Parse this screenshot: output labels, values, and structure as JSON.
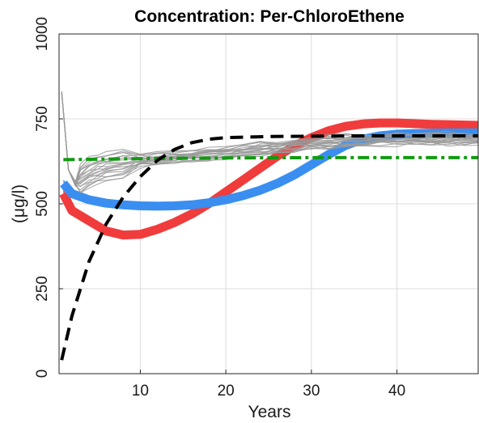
{
  "chart_data": {
    "type": "line",
    "title": "Concentration: Per-ChloroEthene",
    "xlabel": "Years",
    "ylabel": "(μg/l)",
    "xlim": [
      0.5,
      49.5
    ],
    "ylim": [
      0,
      1000
    ],
    "xticks": [
      10,
      20,
      30,
      40
    ],
    "yticks": [
      0,
      250,
      500,
      750,
      1000
    ],
    "grid": true,
    "legend": "none",
    "colors": {
      "red": "#f03c3c",
      "blue": "#3a8ef0",
      "gray": "#9a9a9a",
      "green": "#109a10",
      "black": "#000000"
    },
    "series": [
      {
        "color": "red",
        "style": "solid-band",
        "x": [
          1,
          2,
          4,
          6,
          8,
          10,
          12,
          14,
          16,
          18,
          20,
          22,
          24,
          26,
          28,
          30,
          32,
          34,
          36,
          38,
          40,
          42,
          44,
          46,
          48,
          49.5
        ],
        "values": [
          530,
          480,
          450,
          420,
          408,
          410,
          425,
          445,
          470,
          500,
          535,
          570,
          605,
          640,
          670,
          695,
          715,
          728,
          735,
          738,
          738,
          736,
          734,
          733,
          732,
          731
        ]
      },
      {
        "color": "blue",
        "style": "solid-band",
        "x": [
          1,
          2,
          4,
          6,
          8,
          10,
          12,
          14,
          16,
          18,
          20,
          22,
          24,
          26,
          28,
          30,
          32,
          34,
          36,
          38,
          40,
          42,
          44,
          46,
          48,
          49.5
        ],
        "values": [
          560,
          530,
          512,
          502,
          497,
          494,
          493,
          494,
          497,
          503,
          512,
          524,
          540,
          560,
          585,
          615,
          645,
          672,
          690,
          700,
          705,
          707,
          708,
          709,
          709,
          709
        ]
      },
      {
        "color": "gray",
        "style": "ensemble",
        "x": [
          0.8,
          1.6,
          2.4,
          3,
          4,
          5,
          6,
          8,
          10,
          12,
          14,
          16,
          18,
          20,
          22,
          24,
          26,
          28,
          30,
          32,
          34,
          36,
          38,
          40,
          42,
          44,
          46,
          48,
          49.5
        ],
        "values": [
          830,
          600,
          560,
          575,
          595,
          605,
          612,
          620,
          627,
          633,
          638,
          642,
          646,
          650,
          656,
          662,
          668,
          673,
          678,
          682,
          685,
          688,
          690,
          691,
          692,
          692,
          692,
          692,
          692
        ]
      },
      {
        "color": "green",
        "style": "dash-dot",
        "x": [
          1,
          10,
          20,
          30,
          40,
          49.5
        ],
        "values": [
          630,
          633,
          635,
          636,
          636,
          636
        ]
      },
      {
        "color": "black",
        "style": "dashed",
        "x": [
          0.8,
          2,
          4,
          6,
          8,
          10,
          12,
          14,
          16,
          18,
          20,
          25,
          30,
          35,
          40,
          45,
          49.5
        ],
        "values": [
          40,
          170,
          330,
          440,
          520,
          580,
          628,
          660,
          680,
          690,
          695,
          698,
          699,
          700,
          700,
          700,
          700
        ]
      }
    ]
  }
}
